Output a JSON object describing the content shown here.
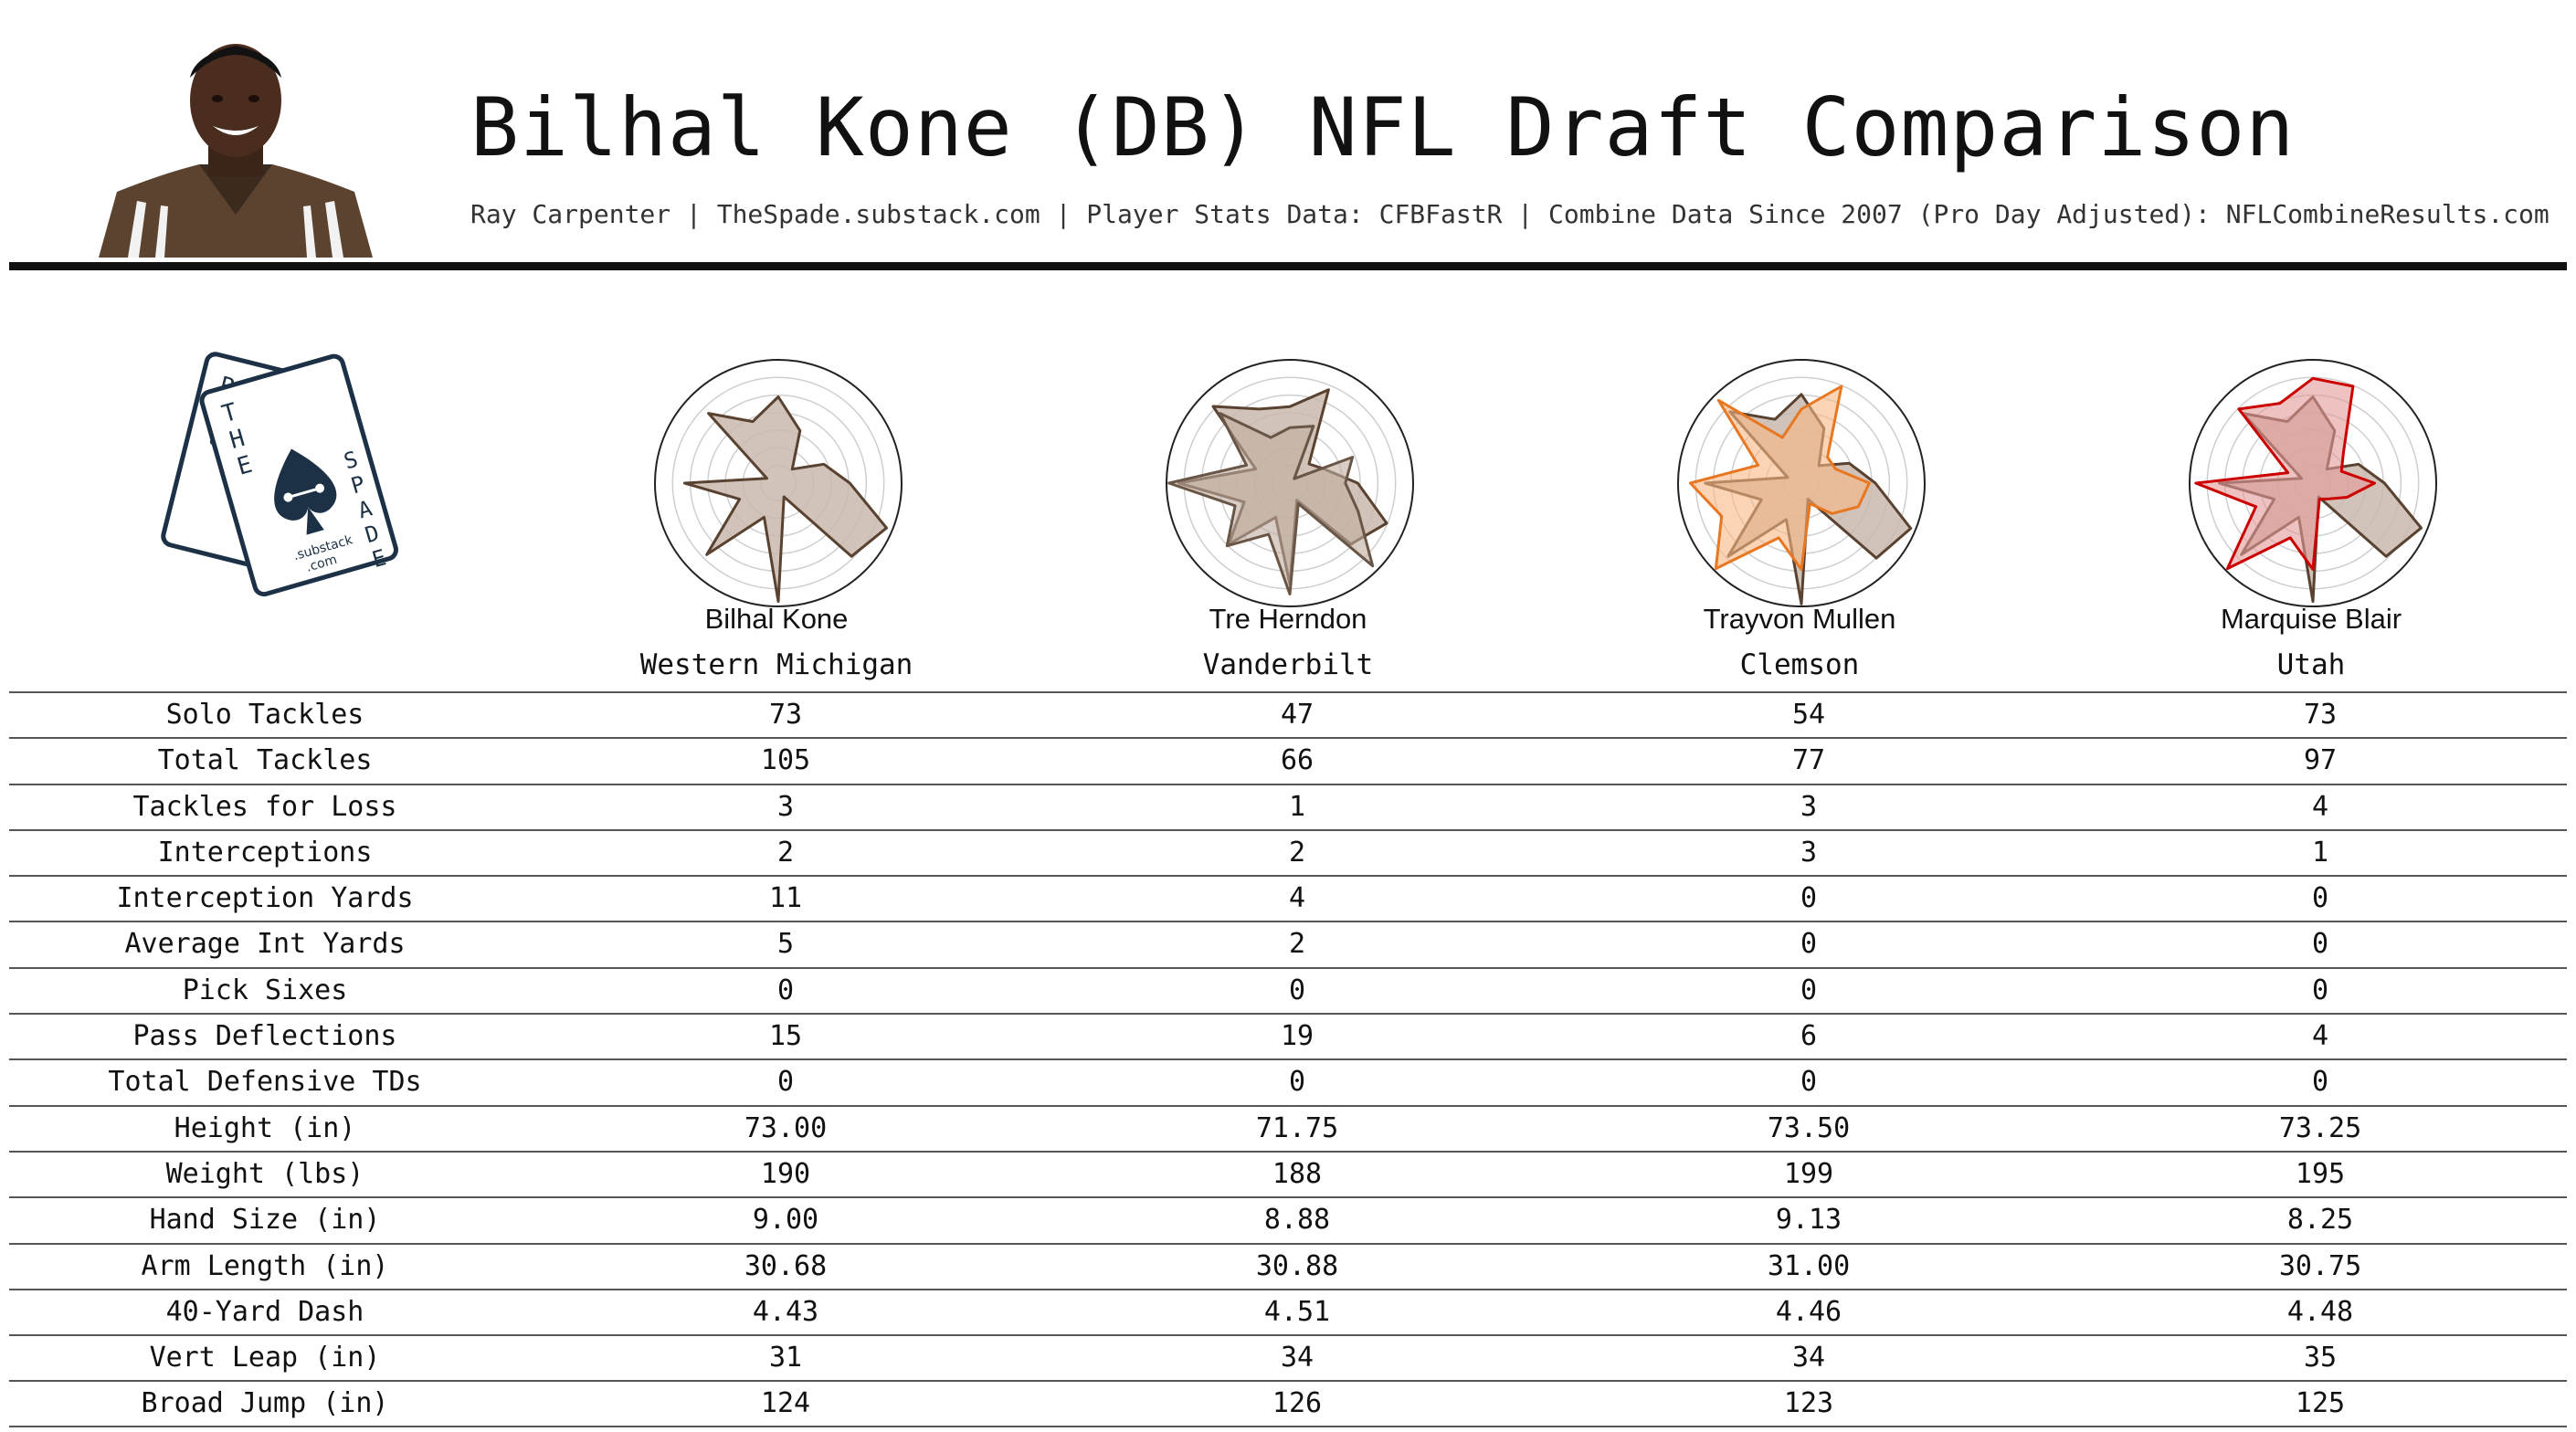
{
  "header": {
    "title": "Bilhal Kone (DB) NFL Draft Comparison",
    "subtitle": "Ray Carpenter | TheSpade.substack.com | Player Stats Data: CFBFastR | Combine Data Since 2007 (Pro Day Adjusted): NFLCombineResults.com"
  },
  "logo": {
    "letters_left": "RC",
    "letters_top": "THE",
    "letters_right": "SPADE",
    "small_line1": ".substack",
    "small_line2": ".com"
  },
  "players": [
    {
      "name": "Bilhal Kone",
      "school": "Western Michigan"
    },
    {
      "name": "Tre Herndon",
      "school": "Vanderbilt"
    },
    {
      "name": "Trayvon Mullen",
      "school": "Clemson"
    },
    {
      "name": "Marquise Blair",
      "school": "Utah"
    }
  ],
  "table": {
    "rows": [
      {
        "label": "Solo Tackles",
        "values": [
          "73",
          "47",
          "54",
          "73"
        ]
      },
      {
        "label": "Total Tackles",
        "values": [
          "105",
          "66",
          "77",
          "97"
        ]
      },
      {
        "label": "Tackles for Loss",
        "values": [
          "3",
          "1",
          "3",
          "4"
        ]
      },
      {
        "label": "Interceptions",
        "values": [
          "2",
          "2",
          "3",
          "1"
        ]
      },
      {
        "label": "Interception Yards",
        "values": [
          "11",
          "4",
          "0",
          "0"
        ]
      },
      {
        "label": "Average Int Yards",
        "values": [
          "5",
          "2",
          "0",
          "0"
        ]
      },
      {
        "label": "Pick Sixes",
        "values": [
          "0",
          "0",
          "0",
          "0"
        ]
      },
      {
        "label": "Pass Deflections",
        "values": [
          "15",
          "19",
          "6",
          "4"
        ]
      },
      {
        "label": "Total Defensive TDs",
        "values": [
          "0",
          "0",
          "0",
          "0"
        ]
      },
      {
        "label": "Height (in)",
        "values": [
          "73.00",
          "71.75",
          "73.50",
          "73.25"
        ]
      },
      {
        "label": "Weight (lbs)",
        "values": [
          "190",
          "188",
          "199",
          "195"
        ]
      },
      {
        "label": "Hand Size (in)",
        "values": [
          "9.00",
          "8.88",
          "9.13",
          "8.25"
        ]
      },
      {
        "label": "Arm Length (in)",
        "values": [
          "30.68",
          "30.88",
          "31.00",
          "30.75"
        ]
      },
      {
        "label": "40-Yard Dash",
        "values": [
          "4.43",
          "4.51",
          "4.46",
          "4.48"
        ]
      },
      {
        "label": "Vert Leap (in)",
        "values": [
          "31",
          "34",
          "34",
          "35"
        ]
      },
      {
        "label": "Broad Jump (in)",
        "values": [
          "124",
          "126",
          "123",
          "125"
        ]
      }
    ]
  },
  "chart_data": [
    {
      "type": "radar",
      "player": "Bilhal Kone",
      "rlim": [
        0,
        1
      ],
      "grid": true,
      "values": [
        0.7,
        0.46,
        0.16,
        0.4,
        0.58,
        0.95,
        0.84,
        0.12,
        0.96,
        0.3,
        0.82,
        0.34,
        0.76,
        0.1,
        0.8,
        0.54
      ],
      "base_color": "#5a4231",
      "base_fill": "#c9b8ad"
    },
    {
      "type": "radar",
      "player": "Tre Herndon",
      "rlim": [
        0,
        1
      ],
      "grid": true,
      "values": [
        0.62,
        0.82,
        0.22,
        0.3,
        0.55,
        0.85,
        0.7,
        0.15,
        0.82,
        0.3,
        0.7,
        0.4,
        0.9,
        0.3,
        0.88,
        0.65
      ],
      "base_color": "#5a4231",
      "base_fill": "#c9b8ad",
      "overlay": {
        "values": [
          0.45,
          0.5,
          0.05,
          0.55,
          0.45,
          0.6,
          0.95,
          0.18,
          0.9,
          0.45,
          0.72,
          0.48,
          0.98,
          0.38,
          0.8,
          0.4
        ],
        "stroke": "#6a5646",
        "fill": "#c0ada0"
      }
    },
    {
      "type": "radar",
      "player": "Trayvon Mullen",
      "rlim": [
        0,
        1
      ],
      "grid": true,
      "values": [
        0.72,
        0.48,
        0.2,
        0.42,
        0.6,
        0.96,
        0.86,
        0.14,
        0.98,
        0.32,
        0.84,
        0.35,
        0.78,
        0.12,
        0.82,
        0.56
      ],
      "base_color": "#5a4231",
      "base_fill": "#c9b8ad",
      "overlay": {
        "values": [
          0.6,
          0.85,
          0.3,
          0.3,
          0.55,
          0.5,
          0.35,
          0.18,
          0.7,
          0.48,
          0.98,
          0.7,
          0.9,
          0.38,
          0.95,
          0.4
        ],
        "stroke": "#e87722",
        "fill": "#f6b784"
      }
    },
    {
      "type": "radar",
      "player": "Marquise Blair",
      "rlim": [
        0,
        1
      ],
      "grid": true,
      "values": [
        0.7,
        0.46,
        0.16,
        0.4,
        0.58,
        0.95,
        0.84,
        0.12,
        0.96,
        0.3,
        0.82,
        0.34,
        0.76,
        0.1,
        0.8,
        0.54
      ],
      "base_color": "#5a4231",
      "base_fill": "#c9b8ad",
      "overlay": {
        "values": [
          0.85,
          0.85,
          0.35,
          0.25,
          0.5,
          0.3,
          0.18,
          0.14,
          0.7,
          0.48,
          0.98,
          0.5,
          0.95,
          0.22,
          0.85,
          0.7
        ],
        "stroke": "#cc0000",
        "fill": "#e59a9a"
      }
    }
  ]
}
